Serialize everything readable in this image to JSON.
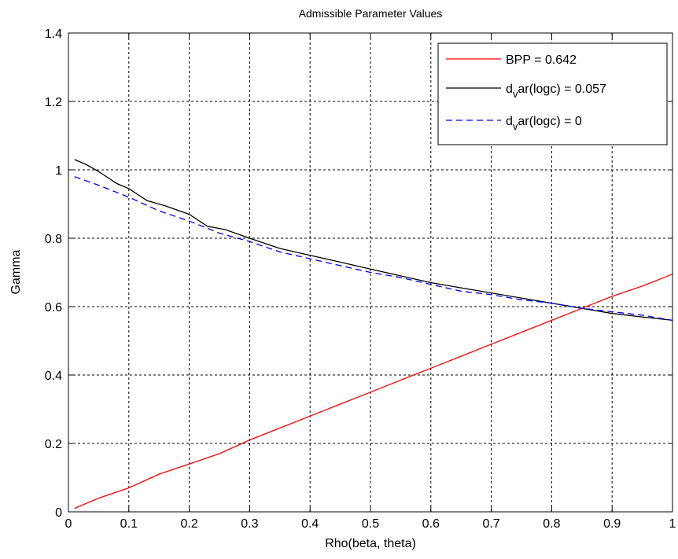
{
  "chart_data": {
    "type": "line",
    "title": "Admissible Parameter Values",
    "xlabel": "Rho(beta, theta)",
    "ylabel": "Gamma",
    "xlim": [
      0,
      1
    ],
    "ylim": [
      0,
      1.4
    ],
    "xticks": [
      0,
      0.1,
      0.2,
      0.3,
      0.4,
      0.5,
      0.6,
      0.7,
      0.8,
      0.9,
      1
    ],
    "xtick_labels": [
      "0",
      "0.1",
      "0.2",
      "0.3",
      "0.4",
      "0.5",
      "0.6",
      "0.7",
      "0.8",
      "0.9",
      "1"
    ],
    "yticks": [
      0,
      0.2,
      0.4,
      0.6,
      0.8,
      1,
      1.2,
      1.4
    ],
    "ytick_labels": [
      "0",
      "0.2",
      "0.4",
      "0.6",
      "0.8",
      "1",
      "1.2",
      "1.4"
    ],
    "grid": true,
    "legend_position": "top-right",
    "series": [
      {
        "name": "BPP = 0.642",
        "legend_main": "BPP = 0.642",
        "legend_sub": "",
        "legend_rest": "",
        "color": "#ff0000",
        "style": "solid",
        "x": [
          0.01,
          0.05,
          0.1,
          0.15,
          0.2,
          0.25,
          0.3,
          0.35,
          0.4,
          0.45,
          0.5,
          0.55,
          0.6,
          0.65,
          0.7,
          0.75,
          0.8,
          0.85,
          0.9,
          0.95,
          1.0
        ],
        "y": [
          0.01,
          0.04,
          0.07,
          0.11,
          0.14,
          0.17,
          0.21,
          0.245,
          0.28,
          0.315,
          0.35,
          0.385,
          0.42,
          0.455,
          0.49,
          0.525,
          0.56,
          0.595,
          0.63,
          0.66,
          0.695
        ]
      },
      {
        "name": "d_var(logc) = 0.057",
        "legend_main": "d",
        "legend_sub": "v",
        "legend_rest": "ar(logc) = 0.057",
        "color": "#000000",
        "style": "solid",
        "x": [
          0.01,
          0.03,
          0.05,
          0.08,
          0.1,
          0.13,
          0.16,
          0.2,
          0.23,
          0.26,
          0.3,
          0.35,
          0.4,
          0.45,
          0.5,
          0.55,
          0.6,
          0.65,
          0.7,
          0.75,
          0.8,
          0.85,
          0.9,
          0.95,
          1.0
        ],
        "y": [
          1.03,
          1.015,
          0.995,
          0.96,
          0.945,
          0.91,
          0.895,
          0.87,
          0.835,
          0.825,
          0.8,
          0.77,
          0.75,
          0.73,
          0.71,
          0.69,
          0.67,
          0.655,
          0.64,
          0.625,
          0.61,
          0.595,
          0.58,
          0.57,
          0.56
        ]
      },
      {
        "name": "d_var(logc) = 0",
        "legend_main": "d",
        "legend_sub": "v",
        "legend_rest": "ar(logc) = 0",
        "color": "#0000ff",
        "style": "dashed",
        "x": [
          0.01,
          0.05,
          0.1,
          0.15,
          0.2,
          0.25,
          0.3,
          0.35,
          0.4,
          0.45,
          0.5,
          0.55,
          0.6,
          0.65,
          0.7,
          0.75,
          0.8,
          0.85,
          0.9,
          0.95,
          1.0
        ],
        "y": [
          0.98,
          0.955,
          0.92,
          0.88,
          0.85,
          0.815,
          0.79,
          0.76,
          0.74,
          0.72,
          0.7,
          0.685,
          0.665,
          0.645,
          0.635,
          0.62,
          0.61,
          0.595,
          0.585,
          0.575,
          0.56
        ]
      }
    ]
  }
}
